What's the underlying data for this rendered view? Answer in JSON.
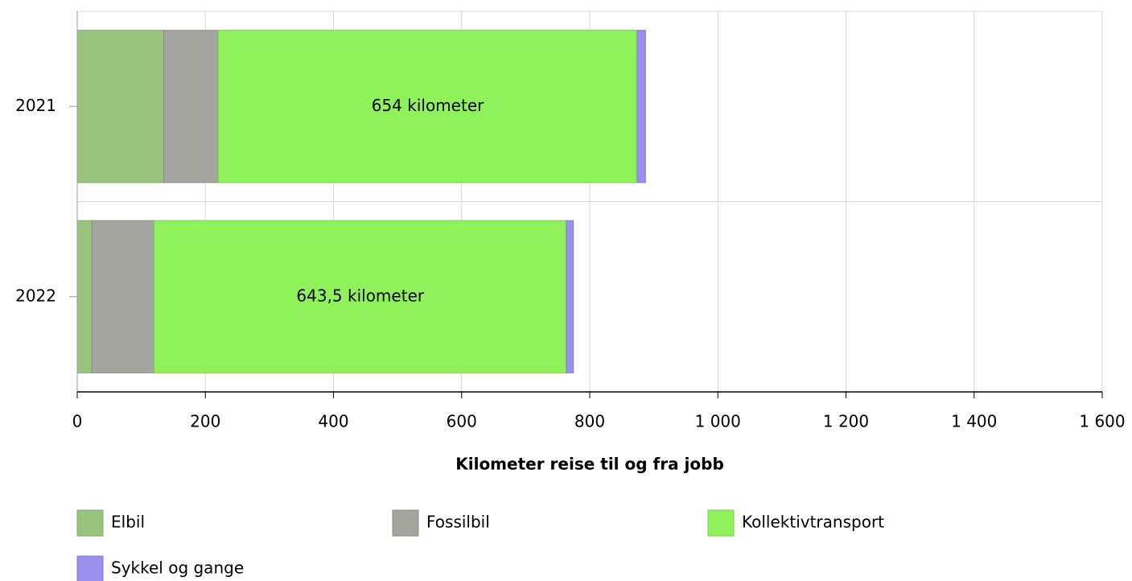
{
  "chart_data": {
    "type": "bar",
    "orientation": "horizontal",
    "stacked": true,
    "xlabel": "Kilometer reise til og fra jobb",
    "categories": [
      "2021",
      "2022"
    ],
    "series": [
      {
        "name": "Elbil",
        "color": "#9ac47e",
        "values": [
          135,
          23
        ]
      },
      {
        "name": "Fossilbil",
        "color": "#a4a59f",
        "values": [
          85,
          97
        ]
      },
      {
        "name": "Kollektivtransport",
        "color": "#8ff25a",
        "values": [
          654,
          643.5
        ],
        "value_labels": [
          "654 kilometer",
          "643,5 kilometer"
        ]
      },
      {
        "name": "Sykkel og gange",
        "color": "#9b8ff0",
        "values": [
          13,
          11
        ]
      }
    ],
    "xlim": [
      0,
      1600
    ],
    "xticks": [
      0,
      200,
      400,
      600,
      800,
      {
        "value": 1000,
        "label": "1 000"
      },
      {
        "value": 1200,
        "label": "1 200"
      },
      {
        "value": 1400,
        "label": "1 400"
      },
      {
        "value": 1600,
        "label": "1 600"
      }
    ],
    "grid": true
  }
}
